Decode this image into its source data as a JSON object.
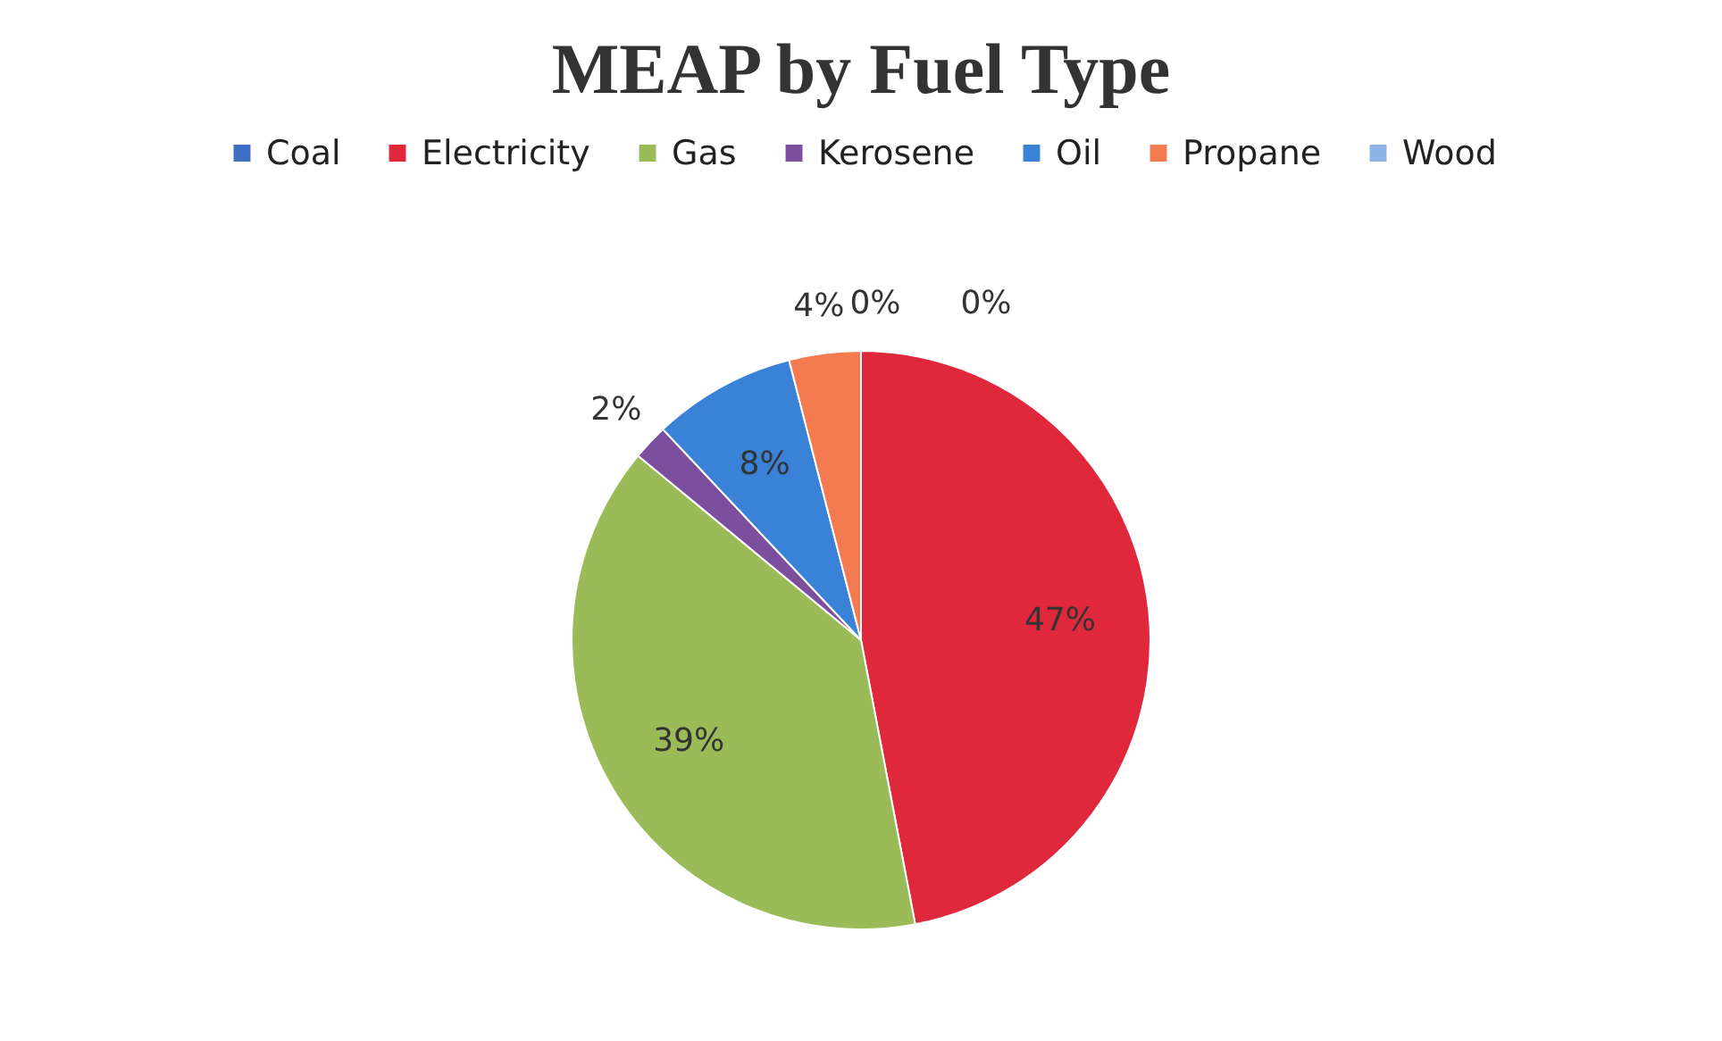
{
  "chart_data": {
    "type": "pie",
    "title": "MEAP by Fuel Type",
    "categories": [
      "Coal",
      "Electricity",
      "Gas",
      "Kerosene",
      "Oil",
      "Propane",
      "Wood"
    ],
    "values": [
      0,
      47,
      39,
      2,
      8,
      4,
      0
    ],
    "value_labels": [
      "0%",
      "47%",
      "39%",
      "2%",
      "8%",
      "4%",
      "0%"
    ],
    "colors": [
      "#3f6fc4",
      "#e0283c",
      "#9bbb59",
      "#7c4f9e",
      "#3a82d8",
      "#f47b50",
      "#8db3e6"
    ],
    "legend": "top"
  }
}
